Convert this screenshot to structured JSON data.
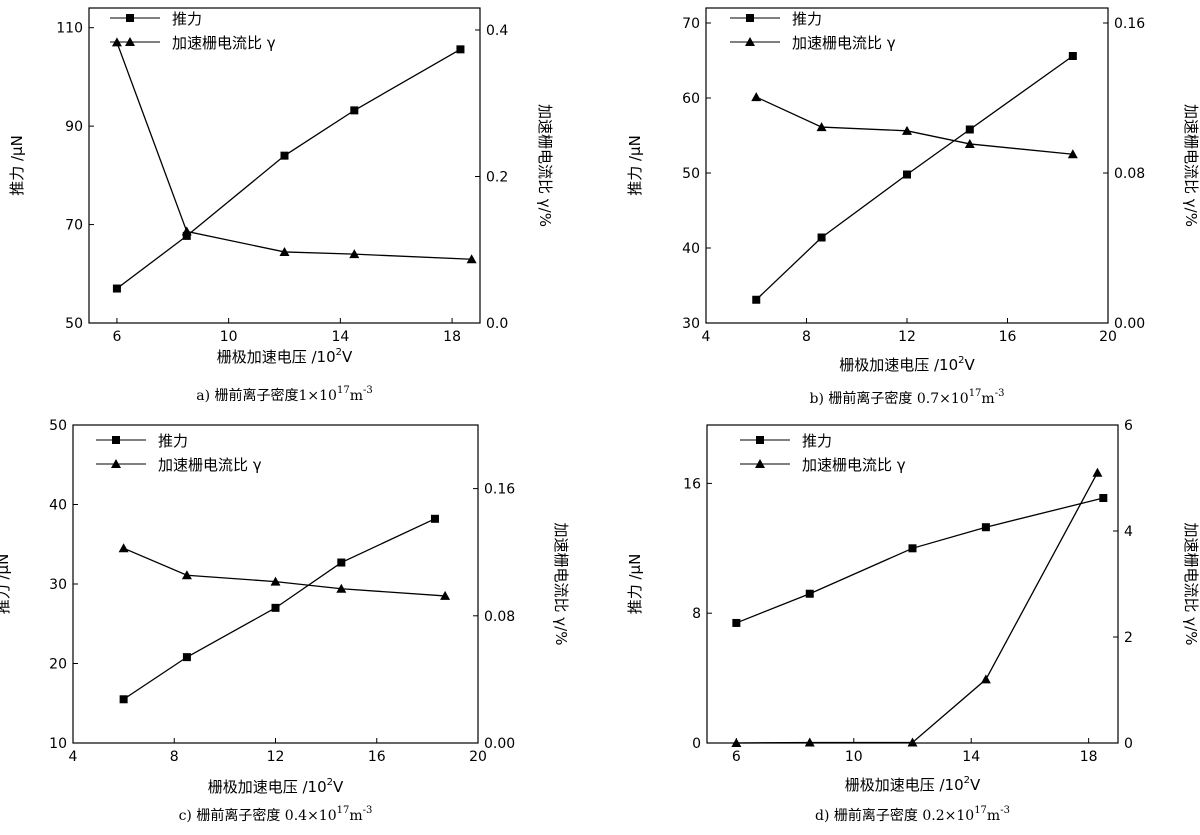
{
  "chart_data": [
    {
      "id": "a",
      "type": "line",
      "caption_prefix": "a)",
      "caption": "栅前离子密度1×10",
      "caption_sup1": "17",
      "caption_unit": "m",
      "caption_sup2": "-3",
      "xlabel": "栅极加速电压 /10",
      "xlabel_sup": "2",
      "xlabel_unit": "V",
      "ylabel": "推力 /μN",
      "y2label": "加速栅电流比 γ/%",
      "xlim": [
        5,
        19
      ],
      "xticks": [
        6,
        10,
        14,
        18
      ],
      "ylim": [
        50,
        114
      ],
      "yticks": [
        50,
        70,
        90,
        110
      ],
      "y2lim": [
        0,
        0.43
      ],
      "y2ticks": [
        0.0,
        0.2,
        0.4
      ],
      "y2ticklabels": [
        "0.0",
        "0.2",
        "0.4"
      ],
      "legend_position": "top-left",
      "series": [
        {
          "name": "推力",
          "axis": "left",
          "marker": "square",
          "x": [
            6,
            8.5,
            12,
            14.5,
            18.3
          ],
          "values": [
            57,
            67.7,
            84,
            93.2,
            105.6
          ]
        },
        {
          "name": "加速栅电流比 γ",
          "axis": "right",
          "marker": "triangle",
          "x": [
            6,
            8.5,
            12,
            14.5,
            18.7
          ],
          "values": [
            0.383,
            0.125,
            0.097,
            0.094,
            0.087
          ]
        }
      ]
    },
    {
      "id": "b",
      "type": "line",
      "caption_prefix": "b)",
      "caption": "栅前离子密度 0.7×10",
      "caption_sup1": "17",
      "caption_unit": "m",
      "caption_sup2": "-3",
      "xlabel": "栅极加速电压 /10",
      "xlabel_sup": "2",
      "xlabel_unit": "V",
      "ylabel": "推力 /μN",
      "y2label": "加速栅电流比 γ/%",
      "xlim": [
        4,
        20
      ],
      "xticks": [
        4,
        8,
        12,
        16,
        20
      ],
      "ylim": [
        30,
        72
      ],
      "yticks": [
        30,
        40,
        50,
        60,
        70
      ],
      "y2lim": [
        0,
        0.168
      ],
      "y2ticks": [
        0.0,
        0.08,
        0.16
      ],
      "y2ticklabels": [
        "0.00",
        "0.08",
        "0.16"
      ],
      "legend_position": "top-left",
      "series": [
        {
          "name": "推力",
          "axis": "left",
          "marker": "square",
          "x": [
            6,
            8.6,
            12,
            14.5,
            18.6
          ],
          "values": [
            33.1,
            41.4,
            49.8,
            55.8,
            65.6
          ]
        },
        {
          "name": "加速栅电流比 γ",
          "axis": "right",
          "marker": "triangle",
          "x": [
            6,
            8.6,
            12,
            14.5,
            18.6
          ],
          "values": [
            0.1205,
            0.1045,
            0.1025,
            0.0955,
            0.09
          ]
        }
      ]
    },
    {
      "id": "c",
      "type": "line",
      "caption_prefix": "c)",
      "caption": "栅前离子密度 0.4×10",
      "caption_sup1": "17",
      "caption_unit": "m",
      "caption_sup2": "-3",
      "xlabel": "栅极加速电压 /10",
      "xlabel_sup": "2",
      "xlabel_unit": "V",
      "ylabel": "推力 /μN",
      "y2label": "加速栅电流比 γ/%",
      "xlim": [
        4,
        20
      ],
      "xticks": [
        4,
        8,
        12,
        16,
        20
      ],
      "ylim": [
        10,
        50
      ],
      "yticks": [
        10,
        20,
        30,
        40,
        50
      ],
      "y2lim": [
        0,
        0.2
      ],
      "y2ticks": [
        0.0,
        0.08,
        0.16
      ],
      "y2ticklabels": [
        "0.00",
        "0.08",
        "0.16"
      ],
      "legend_position": "top-left",
      "series": [
        {
          "name": "推力",
          "axis": "left",
          "marker": "square",
          "x": [
            6,
            8.5,
            12,
            14.6,
            18.3
          ],
          "values": [
            15.5,
            20.8,
            27.0,
            32.7,
            38.2
          ]
        },
        {
          "name": "加速栅电流比 γ",
          "axis": "right",
          "marker": "triangle",
          "x": [
            6,
            8.5,
            12,
            14.6,
            18.7
          ],
          "values": [
            0.1225,
            0.1055,
            0.1015,
            0.097,
            0.0925
          ]
        }
      ]
    },
    {
      "id": "d",
      "type": "line",
      "caption_prefix": "d)",
      "caption": "栅前离子密度 0.2×10",
      "caption_sup1": "17",
      "caption_unit": "m",
      "caption_sup2": "-3",
      "xlabel": "栅极加速电压 /10",
      "xlabel_sup": "2",
      "xlabel_unit": "V",
      "ylabel": "推力 /μN",
      "y2label": "加速栅电流比 γ/%",
      "xlim": [
        5,
        19
      ],
      "xticks": [
        6,
        10,
        14,
        18
      ],
      "ylim": [
        0,
        19.6
      ],
      "yticks": [
        0,
        8,
        16
      ],
      "y2lim": [
        0,
        6
      ],
      "y2ticks": [
        0,
        2,
        4,
        6
      ],
      "y2ticklabels": [
        "0",
        "2",
        "4",
        "6"
      ],
      "legend_position": "top-left",
      "series": [
        {
          "name": "推力",
          "axis": "left",
          "marker": "square",
          "x": [
            6,
            8.5,
            12,
            14.5,
            18.5
          ],
          "values": [
            7.4,
            9.2,
            12.0,
            13.3,
            15.1
          ]
        },
        {
          "name": "加速栅电流比 γ",
          "axis": "right",
          "marker": "triangle",
          "x": [
            6,
            8.5,
            12,
            14.5,
            18.3
          ],
          "values": [
            0.0,
            0.01,
            0.01,
            1.2,
            5.1
          ]
        }
      ]
    }
  ]
}
